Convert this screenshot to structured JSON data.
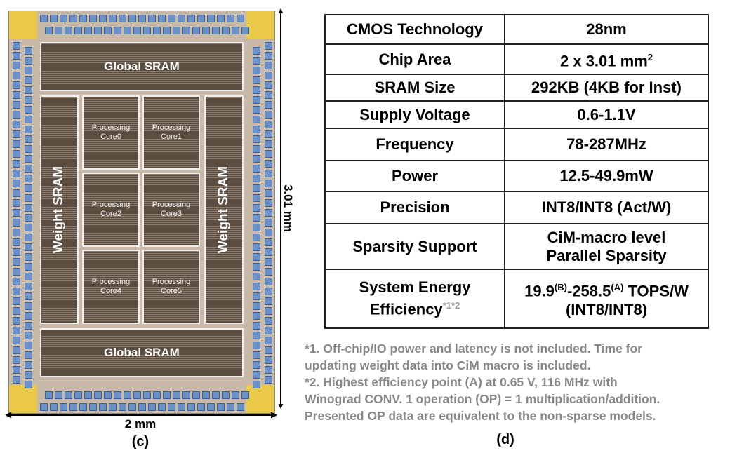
{
  "die": {
    "global_sram_top": "Global SRAM",
    "global_sram_bottom": "Global SRAM",
    "weight_sram_left": "Weight SRAM",
    "weight_sram_right": "Weight SRAM",
    "cores": [
      [
        "Processing",
        "Core0"
      ],
      [
        "Processing",
        "Core1"
      ],
      [
        "Processing",
        "Core2"
      ],
      [
        "Processing",
        "Core3"
      ],
      [
        "Processing",
        "Core4"
      ],
      [
        "Processing",
        "Core5"
      ]
    ],
    "height_label": "3.01 mm",
    "width_label": "2 mm",
    "caption": "(c)"
  },
  "table": {
    "rows": [
      {
        "label": "CMOS Technology",
        "value": "28nm"
      },
      {
        "label": "Chip Area",
        "value": "2 x 3.01 mm",
        "value_sup": "2"
      },
      {
        "label": "SRAM Size",
        "value": "292KB (4KB for Inst)"
      },
      {
        "label": "Supply Voltage",
        "value": "0.6-1.1V"
      },
      {
        "label": "Frequency",
        "value": "78-287MHz"
      },
      {
        "label": "Power",
        "value": "12.5-49.9mW"
      },
      {
        "label": "Precision",
        "value": "INT8/INT8 (Act/W)"
      },
      {
        "label": "Sparsity Support",
        "value_line1": "CiM-macro level",
        "value_line2": "Parallel Sparsity"
      },
      {
        "label_line1": "System Energy",
        "label_line2": "Efficiency",
        "label_sup": "*1*2",
        "v_a": "19.9",
        "v_a_sup": "(B)",
        "v_b": "-258.5",
        "v_b_sup": "(A)",
        "v_c": " TOPS/W",
        "value_line2": "(INT8/INT8)"
      }
    ]
  },
  "footnotes": [
    "*1. Off-chip/IO  power and latency is not included.  Time for",
    "updating weight data into CiM macro is included.",
    "*2. Highest efficiency  point (A) at 0.65 V, 116 MHz with",
    "Winograd CONV. 1 operation (OP) = 1 multiplication/addition.",
    "Presented OP data are equivalent to the non-sparse models."
  ],
  "caption": "(d)"
}
